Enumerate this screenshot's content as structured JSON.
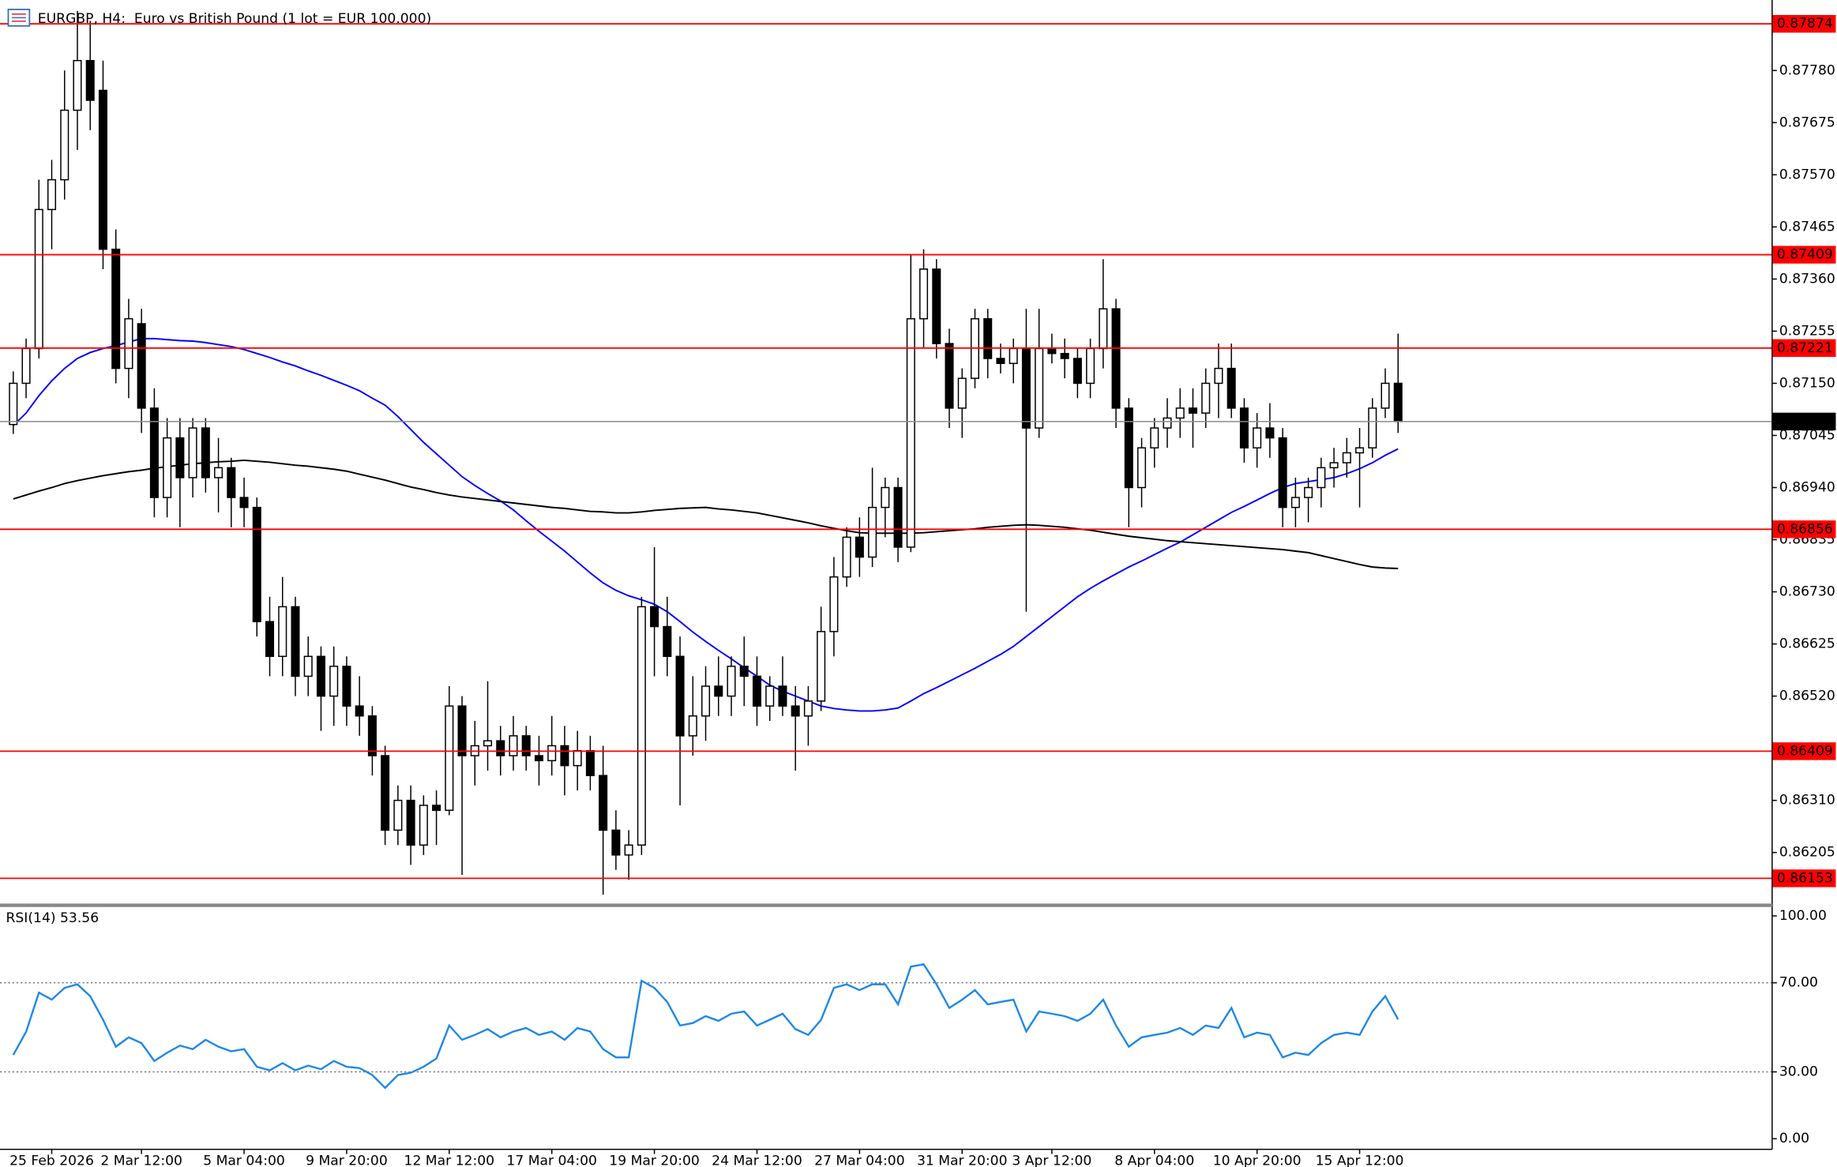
{
  "chart_data": [
    {
      "type": "candlestick",
      "title": "EURGBP, H4:  Euro vs British Pound (1 lot = EUR 100.000)",
      "categories": [
        null,
        null,
        null,
        "25 Feb 2026",
        null,
        null,
        null,
        null,
        null,
        null,
        "2 Mar 12:00",
        null,
        null,
        null,
        null,
        null,
        null,
        null,
        "5 Mar 04:00",
        null,
        null,
        null,
        null,
        null,
        null,
        null,
        "9 Mar 20:00",
        null,
        null,
        null,
        null,
        null,
        null,
        null,
        "12 Mar 12:00",
        null,
        null,
        null,
        null,
        null,
        null,
        null,
        "17 Mar 04:00",
        null,
        null,
        null,
        null,
        null,
        null,
        null,
        "19 Mar 20:00",
        null,
        null,
        null,
        null,
        null,
        null,
        null,
        "24 Mar 12:00",
        null,
        null,
        null,
        null,
        null,
        null,
        null,
        "27 Mar 04:00",
        null,
        null,
        null,
        null,
        null,
        null,
        null,
        "31 Mar 20:00",
        null,
        null,
        null,
        null,
        null,
        null,
        "3 Apr 12:00",
        null,
        null,
        null,
        null,
        null,
        null,
        null,
        "8 Apr 04:00",
        null,
        null,
        null,
        null,
        null,
        null,
        null,
        "10 Apr 20:00",
        null,
        null,
        null,
        null,
        null,
        null,
        null,
        "15 Apr 12:00",
        null,
        null,
        null
      ],
      "open": [
        0.87067,
        0.8715,
        0.8722,
        0.875,
        0.8756,
        0.877,
        0.878,
        0.8774,
        0.8742,
        0.8718,
        0.8727,
        0.871,
        0.8692,
        0.8704,
        0.8696,
        0.8706,
        0.8696,
        0.8698,
        0.8692,
        0.869,
        0.8667,
        0.866,
        0.867,
        0.8656,
        0.866,
        0.8652,
        0.8658,
        0.865,
        0.8648,
        0.864,
        0.8625,
        0.8631,
        0.8622,
        0.863,
        0.8629,
        0.865,
        0.864,
        0.8642,
        0.8643,
        0.864,
        0.8644,
        0.864,
        0.8639,
        0.8642,
        0.8638,
        0.8641,
        0.8636,
        0.8625,
        0.862,
        0.8622,
        0.867,
        0.8666,
        0.866,
        0.8644,
        0.8648,
        0.8654,
        0.8652,
        0.8658,
        0.8656,
        0.865,
        0.8654,
        0.865,
        0.8648,
        0.8651,
        0.8665,
        0.8676,
        0.8684,
        0.868,
        0.869,
        0.8694,
        0.8682,
        0.8728,
        0.8738,
        0.8723,
        0.871,
        0.8716,
        0.8728,
        0.872,
        0.8719,
        0.8722,
        0.8706,
        0.8722,
        0.8721,
        0.872,
        0.8715,
        0.8722,
        0.873,
        0.871,
        0.8694,
        0.8702,
        0.8706,
        0.8708,
        0.871,
        0.8709,
        0.8715,
        0.8718,
        0.871,
        0.8702,
        0.8706,
        0.8704,
        0.869,
        0.8692,
        0.8694,
        0.8698,
        0.8699,
        0.8701,
        0.8702,
        0.871,
        0.8715
      ],
      "high": [
        0.87174,
        0.8724,
        0.8756,
        0.876,
        0.8778,
        0.879,
        0.8788,
        0.878,
        0.8746,
        0.8732,
        0.873,
        0.8714,
        0.8708,
        0.8708,
        0.8708,
        0.8708,
        0.8704,
        0.87,
        0.8696,
        0.8692,
        0.8672,
        0.8676,
        0.8672,
        0.8664,
        0.8662,
        0.8662,
        0.866,
        0.8656,
        0.865,
        0.8642,
        0.8634,
        0.8634,
        0.8632,
        0.8633,
        0.8654,
        0.8652,
        0.8647,
        0.8655,
        0.8646,
        0.8648,
        0.8646,
        0.8644,
        0.8648,
        0.8646,
        0.8645,
        0.8644,
        0.8642,
        0.8629,
        0.8625,
        0.8672,
        0.8682,
        0.8672,
        0.8664,
        0.8656,
        0.8658,
        0.866,
        0.866,
        0.8664,
        0.866,
        0.8656,
        0.866,
        0.8654,
        0.8654,
        0.867,
        0.868,
        0.8686,
        0.8688,
        0.8698,
        0.8696,
        0.8696,
        0.8741,
        0.8742,
        0.874,
        0.8726,
        0.8718,
        0.873,
        0.873,
        0.8723,
        0.8724,
        0.873,
        0.873,
        0.8725,
        0.8724,
        0.8722,
        0.8724,
        0.874,
        0.8732,
        0.8712,
        0.8704,
        0.8708,
        0.8712,
        0.8714,
        0.8714,
        0.8718,
        0.8723,
        0.8723,
        0.8712,
        0.8709,
        0.8711,
        0.8706,
        0.8696,
        0.8696,
        0.87,
        0.8702,
        0.8704,
        0.8706,
        0.8712,
        0.8718,
        0.8725
      ],
      "low": [
        0.87048,
        0.8712,
        0.872,
        0.8742,
        0.8752,
        0.8762,
        0.8766,
        0.8738,
        0.8715,
        0.8712,
        0.8705,
        0.8688,
        0.8688,
        0.8686,
        0.8692,
        0.8693,
        0.8689,
        0.8686,
        0.8686,
        0.8664,
        0.8656,
        0.8656,
        0.8652,
        0.8652,
        0.8645,
        0.8646,
        0.8646,
        0.8644,
        0.8636,
        0.8622,
        0.8622,
        0.8618,
        0.862,
        0.8622,
        0.8628,
        0.8616,
        0.8634,
        0.8637,
        0.8636,
        0.8637,
        0.8637,
        0.8634,
        0.8636,
        0.8632,
        0.8633,
        0.8633,
        0.8612,
        0.8617,
        0.8615,
        0.862,
        0.8656,
        0.8656,
        0.863,
        0.864,
        0.8643,
        0.8648,
        0.8648,
        0.865,
        0.8646,
        0.8647,
        0.8648,
        0.8637,
        0.8642,
        0.8649,
        0.866,
        0.8674,
        0.8676,
        0.8678,
        0.8684,
        0.8679,
        0.8681,
        0.8722,
        0.872,
        0.8706,
        0.8704,
        0.8714,
        0.8716,
        0.8717,
        0.8715,
        0.8669,
        0.8704,
        0.8719,
        0.8716,
        0.8712,
        0.8712,
        0.8718,
        0.8706,
        0.8686,
        0.869,
        0.8698,
        0.8702,
        0.8704,
        0.8702,
        0.8706,
        0.8708,
        0.8708,
        0.8699,
        0.8698,
        0.87,
        0.8686,
        0.8686,
        0.8687,
        0.869,
        0.8694,
        0.8696,
        0.869,
        0.87,
        0.8708,
        0.8705
      ],
      "close": [
        0.8715,
        0.8722,
        0.875,
        0.8756,
        0.877,
        0.878,
        0.8772,
        0.8742,
        0.8718,
        0.8728,
        0.871,
        0.8692,
        0.8704,
        0.8696,
        0.8706,
        0.8696,
        0.8698,
        0.8692,
        0.869,
        0.8667,
        0.866,
        0.867,
        0.8656,
        0.866,
        0.8652,
        0.8658,
        0.865,
        0.8648,
        0.864,
        0.8625,
        0.8631,
        0.8622,
        0.863,
        0.8629,
        0.865,
        0.864,
        0.8642,
        0.8643,
        0.864,
        0.8644,
        0.864,
        0.8639,
        0.8642,
        0.8638,
        0.8641,
        0.8636,
        0.8625,
        0.862,
        0.8622,
        0.867,
        0.8666,
        0.866,
        0.8644,
        0.8648,
        0.8654,
        0.8652,
        0.8658,
        0.8656,
        0.865,
        0.8654,
        0.865,
        0.8648,
        0.8651,
        0.8665,
        0.8676,
        0.8684,
        0.868,
        0.869,
        0.8694,
        0.8682,
        0.8728,
        0.8738,
        0.8723,
        0.871,
        0.8716,
        0.8728,
        0.872,
        0.8719,
        0.8722,
        0.8706,
        0.8722,
        0.8721,
        0.872,
        0.8715,
        0.8722,
        0.873,
        0.871,
        0.8694,
        0.8702,
        0.8706,
        0.8708,
        0.871,
        0.8709,
        0.8715,
        0.8718,
        0.871,
        0.8702,
        0.8706,
        0.8704,
        0.869,
        0.8692,
        0.8694,
        0.8698,
        0.8699,
        0.8701,
        0.8702,
        0.871,
        0.8715,
        0.87073
      ],
      "lines": [
        {
          "color": "#0000ff",
          "values": [
            0.87065,
            0.8709,
            0.87125,
            0.87155,
            0.8718,
            0.872,
            0.87212,
            0.8722,
            0.87226,
            0.87233,
            0.8724,
            0.8724,
            0.87238,
            0.87236,
            0.87235,
            0.87232,
            0.87228,
            0.87224,
            0.87218,
            0.8721,
            0.87202,
            0.87193,
            0.87185,
            0.87175,
            0.87166,
            0.87156,
            0.87146,
            0.87135,
            0.8712,
            0.87106,
            0.87083,
            0.87057,
            0.87031,
            0.87008,
            0.86985,
            0.86962,
            0.86944,
            0.86928,
            0.86913,
            0.86895,
            0.86873,
            0.86852,
            0.86832,
            0.86812,
            0.8679,
            0.86768,
            0.86748,
            0.86733,
            0.86722,
            0.86714,
            0.86705,
            0.8669,
            0.8667,
            0.86649,
            0.8663,
            0.86612,
            0.86595,
            0.86577,
            0.8656,
            0.86542,
            0.8653,
            0.8652,
            0.8651,
            0.865,
            0.86495,
            0.86492,
            0.8649,
            0.8649,
            0.86492,
            0.86496,
            0.8651,
            0.86525,
            0.86537,
            0.8655,
            0.86563,
            0.86576,
            0.8659,
            0.86604,
            0.8662,
            0.8664,
            0.8666,
            0.8668,
            0.867,
            0.8672,
            0.86737,
            0.86752,
            0.86766,
            0.8678,
            0.86792,
            0.86805,
            0.86818,
            0.8683,
            0.86845,
            0.8686,
            0.86875,
            0.8689,
            0.86902,
            0.86915,
            0.86928,
            0.8694,
            0.86948,
            0.86952,
            0.86956,
            0.8696,
            0.86968,
            0.86978,
            0.8699,
            0.87005,
            0.87018
          ]
        },
        {
          "color": "#000000",
          "values": [
            0.86917,
            0.86925,
            0.86933,
            0.8694,
            0.86948,
            0.86954,
            0.86959,
            0.86964,
            0.86968,
            0.86972,
            0.86975,
            0.86979,
            0.86982,
            0.86985,
            0.86988,
            0.8699,
            0.86992,
            0.86993,
            0.86995,
            0.86993,
            0.86991,
            0.86988,
            0.86985,
            0.86983,
            0.8698,
            0.86977,
            0.86973,
            0.86967,
            0.86961,
            0.86955,
            0.86948,
            0.86941,
            0.86936,
            0.8693,
            0.86925,
            0.86921,
            0.86918,
            0.86915,
            0.86912,
            0.86909,
            0.86906,
            0.86903,
            0.869,
            0.86898,
            0.86895,
            0.86892,
            0.86891,
            0.86889,
            0.86889,
            0.86891,
            0.86894,
            0.86896,
            0.86898,
            0.86899,
            0.869,
            0.86897,
            0.86895,
            0.86892,
            0.86889,
            0.86884,
            0.86879,
            0.86874,
            0.86869,
            0.86863,
            0.86858,
            0.86853,
            0.86849,
            0.86848,
            0.86848,
            0.86848,
            0.86848,
            0.86849,
            0.86851,
            0.86853,
            0.86855,
            0.86857,
            0.8686,
            0.86862,
            0.86864,
            0.86865,
            0.86864,
            0.86862,
            0.8686,
            0.86857,
            0.86854,
            0.8685,
            0.86846,
            0.86842,
            0.86839,
            0.86836,
            0.86833,
            0.86831,
            0.86829,
            0.86827,
            0.86825,
            0.86823,
            0.86821,
            0.86819,
            0.86817,
            0.86815,
            0.86812,
            0.86809,
            0.86803,
            0.86797,
            0.86791,
            0.86785,
            0.8678,
            0.86778,
            0.86777
          ]
        }
      ],
      "levels": [
        0.87874,
        0.87409,
        0.87221,
        0.86856,
        0.86409,
        0.86153
      ],
      "level_color": "#ff0000",
      "last": 0.87073,
      "up_color": "#ffffff",
      "down_color": "#000000",
      "ylim": [
        0.86101,
        0.87903
      ],
      "yticks": [
        {
          "value": 0.8778,
          "label": "0.87780"
        },
        0.87675,
        {
          "value": 0.8757,
          "label": "0.87570"
        },
        0.87465,
        {
          "value": 0.8736,
          "label": "0.87360"
        },
        0.87255,
        {
          "value": 0.8715,
          "label": "0.87150"
        },
        0.87045,
        {
          "value": 0.8694,
          "label": "0.86940"
        },
        0.86835,
        {
          "value": 0.8673,
          "label": "0.86730"
        },
        0.86625,
        {
          "value": 0.8652,
          "label": "0.86520"
        },
        {
          "value": 0.8631,
          "label": "0.86310"
        },
        0.86205
      ],
      "grid": false
    },
    {
      "type": "line",
      "title": "RSI(14) 53.56",
      "color": "#1e88e5",
      "values": [
        37.6,
        48,
        65.6,
        62.4,
        67.7,
        69.3,
        64,
        53.4,
        41.3,
        45.5,
        42.9,
        34.9,
        38.6,
        41.8,
        40.2,
        44.4,
        41.3,
        39.2,
        40.2,
        32.3,
        30.7,
        33.9,
        30.7,
        32.8,
        31.2,
        34.9,
        32.3,
        31.7,
        28.6,
        22.8,
        28.6,
        29.6,
        32.3,
        36,
        50.8,
        44.4,
        46.6,
        49.2,
        45.5,
        48.1,
        49.7,
        46.6,
        48.1,
        44.4,
        49.7,
        48.1,
        40.2,
        36.5,
        36.5,
        70.9,
        67.7,
        61.4,
        50.8,
        51.9,
        55,
        52.9,
        56.1,
        57.1,
        50.8,
        53.4,
        56.1,
        49.2,
        46.6,
        53.4,
        67.7,
        69.3,
        66.7,
        69.3,
        69.3,
        60.3,
        77.2,
        78.3,
        69.3,
        58.7,
        62.4,
        66.7,
        60.3,
        61.4,
        62.4,
        48.1,
        57.1,
        56.1,
        55,
        52.9,
        56.1,
        62.4,
        50.8,
        41.3,
        45.5,
        46.6,
        47.6,
        49.7,
        46.6,
        50.8,
        49.7,
        58.7,
        45.5,
        47.6,
        46.6,
        36.5,
        38.6,
        37.6,
        42.9,
        46.6,
        47.6,
        46.6,
        57.1,
        64,
        53.56
      ],
      "levels": [
        70,
        30
      ],
      "ylim": [
        0,
        100
      ],
      "yticks": [
        {
          "value": 100,
          "label": "100.00"
        },
        {
          "value": 70,
          "label": "70.00"
        },
        {
          "value": 30,
          "label": "30.00"
        },
        {
          "value": 0,
          "label": "0.00"
        }
      ]
    }
  ]
}
